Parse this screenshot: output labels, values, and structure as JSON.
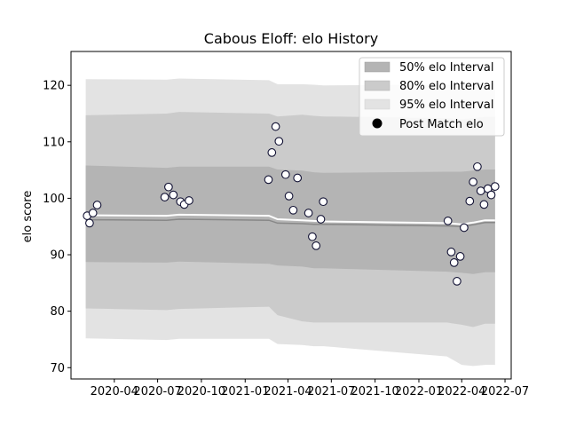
{
  "chart_data": {
    "type": "scatter",
    "title": "Cabous Eloff: elo History",
    "ylabel": "elo score",
    "xlabel": "",
    "ylim": [
      68,
      126
    ],
    "xlim": [
      "2020-01-01",
      "2022-07-14"
    ],
    "yticks": [
      70,
      80,
      90,
      100,
      110,
      120
    ],
    "xticks": [
      "2020-04",
      "2020-07",
      "2020-10",
      "2021-01",
      "2021-04",
      "2021-07",
      "2021-10",
      "2022-01",
      "2022-04",
      "2022-07"
    ],
    "grid": false,
    "legend": {
      "placement": "top-right",
      "entries": [
        {
          "label": "50% elo Interval",
          "key": "band50"
        },
        {
          "label": "80% elo Interval",
          "key": "band80"
        },
        {
          "label": "95% elo Interval",
          "key": "band95"
        },
        {
          "label": "Post Match elo",
          "key": "points"
        }
      ]
    },
    "colors": {
      "band50": "#b4b4b4",
      "band80": "#cbcbcb",
      "band95": "#e3e3e3",
      "mean_line": "#888888",
      "median_line": "#ffffff",
      "point_fill": "#ffffff",
      "point_edge": "#111133"
    },
    "bands": {
      "dates": [
        "2020-02-01",
        "2020-07-20",
        "2020-08-15",
        "2021-02-20",
        "2021-03-10",
        "2021-05-01",
        "2021-05-25",
        "2021-06-15",
        "2022-03-01",
        "2022-04-01",
        "2022-04-25",
        "2022-05-20",
        "2022-06-10"
      ],
      "band95": {
        "upper": [
          121.1,
          121.0,
          121.2,
          120.9,
          120.2,
          120.2,
          120.1,
          120.0,
          120.1,
          120.1,
          120.2,
          120.4,
          120.4
        ],
        "lower": [
          75.2,
          74.9,
          75.1,
          75.1,
          74.2,
          74.0,
          73.8,
          73.8,
          72.0,
          70.5,
          70.3,
          70.5,
          70.5
        ]
      },
      "band80": {
        "upper": [
          114.7,
          115.0,
          115.3,
          115.0,
          114.5,
          114.8,
          114.6,
          114.5,
          114.2,
          114.0,
          114.2,
          114.4,
          114.4
        ],
        "lower": [
          80.5,
          80.2,
          80.4,
          80.8,
          79.3,
          78.2,
          78.0,
          78.0,
          78.0,
          77.6,
          77.2,
          77.8,
          77.8
        ]
      },
      "band50": {
        "upper": [
          105.8,
          105.4,
          105.6,
          105.6,
          105.1,
          104.9,
          104.6,
          104.5,
          104.7,
          104.7,
          104.9,
          105.1,
          105.1
        ],
        "lower": [
          88.7,
          88.6,
          88.8,
          88.4,
          88.1,
          87.9,
          87.6,
          87.6,
          87.0,
          86.8,
          86.6,
          86.9,
          86.9
        ]
      },
      "mean": [
        96.2,
        96.1,
        96.3,
        96.1,
        95.6,
        95.5,
        95.4,
        95.4,
        95.1,
        95.0,
        95.3,
        95.7,
        95.7
      ],
      "median": [
        97.0,
        96.9,
        97.1,
        96.9,
        96.3,
        96.1,
        96.0,
        95.9,
        95.6,
        95.4,
        95.7,
        96.1,
        96.1
      ]
    },
    "series": [
      {
        "name": "Post Match elo",
        "x": [
          "2020-02-04",
          "2020-02-09",
          "2020-02-16",
          "2020-02-25",
          "2020-07-16",
          "2020-07-24",
          "2020-08-03",
          "2020-08-18",
          "2020-08-26",
          "2020-09-05",
          "2021-02-19",
          "2021-02-26",
          "2021-03-06",
          "2021-03-13",
          "2021-03-27",
          "2021-04-03",
          "2021-04-12",
          "2021-04-21",
          "2021-05-14",
          "2021-05-22",
          "2021-05-30",
          "2021-06-09",
          "2021-06-14",
          "2022-03-03",
          "2022-03-10",
          "2022-03-16",
          "2022-03-22",
          "2022-03-29",
          "2022-04-06",
          "2022-04-18",
          "2022-04-25",
          "2022-05-04",
          "2022-05-11",
          "2022-05-18",
          "2022-05-26",
          "2022-06-02",
          "2022-06-10"
        ],
        "values": [
          96.9,
          95.6,
          97.4,
          98.8,
          100.2,
          102.0,
          100.6,
          99.4,
          98.9,
          99.6,
          103.3,
          108.1,
          112.7,
          110.1,
          104.2,
          100.4,
          97.9,
          103.6,
          97.4,
          93.2,
          91.6,
          96.3,
          99.4,
          96.0,
          90.5,
          88.6,
          85.3,
          89.7,
          94.8,
          99.5,
          102.9,
          105.6,
          101.3,
          98.9,
          101.7,
          100.6,
          102.1
        ]
      }
    ]
  }
}
